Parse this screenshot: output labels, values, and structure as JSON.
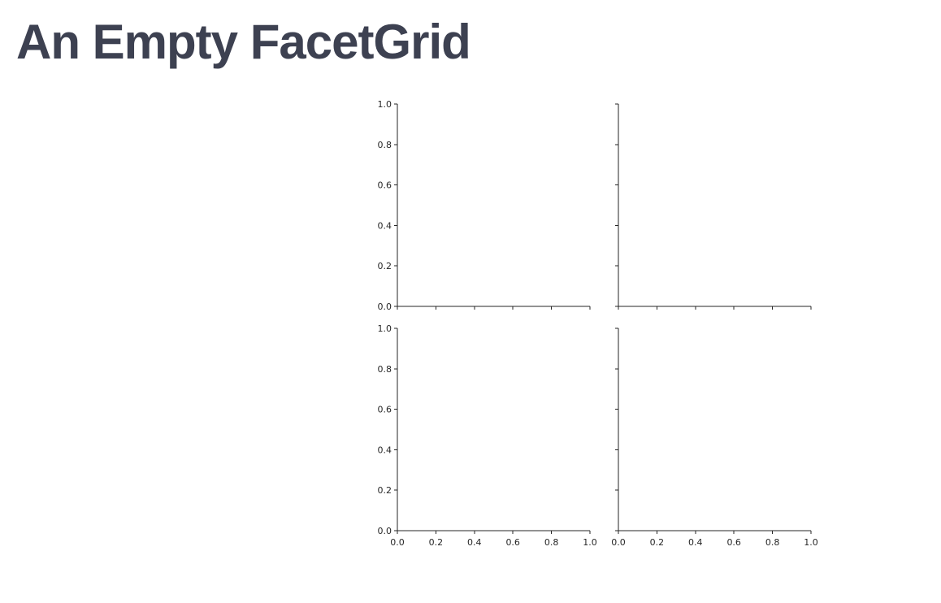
{
  "page": {
    "title": "An Empty FacetGrid"
  },
  "chart_data": {
    "type": "scatter",
    "layout": "2x2 facet grid, shared axes",
    "grid": false,
    "x_range": [
      0,
      1
    ],
    "y_range": [
      0,
      1
    ],
    "x_ticks": [
      0.0,
      0.2,
      0.4,
      0.6,
      0.8,
      1.0
    ],
    "y_ticks": [
      0.0,
      0.2,
      0.4,
      0.6,
      0.8,
      1.0
    ],
    "x_tick_labels": [
      "0.0",
      "0.2",
      "0.4",
      "0.6",
      "0.8",
      "1.0"
    ],
    "y_tick_labels": [
      "0.0",
      "0.2",
      "0.4",
      "0.6",
      "0.8",
      "1.0"
    ],
    "facets": [
      {
        "row": 0,
        "col": 0,
        "show_x_labels": false,
        "show_y_labels": true,
        "series": []
      },
      {
        "row": 0,
        "col": 1,
        "show_x_labels": false,
        "show_y_labels": false,
        "series": []
      },
      {
        "row": 1,
        "col": 0,
        "show_x_labels": true,
        "show_y_labels": true,
        "series": []
      },
      {
        "row": 1,
        "col": 1,
        "show_x_labels": true,
        "show_y_labels": false,
        "series": []
      }
    ]
  }
}
